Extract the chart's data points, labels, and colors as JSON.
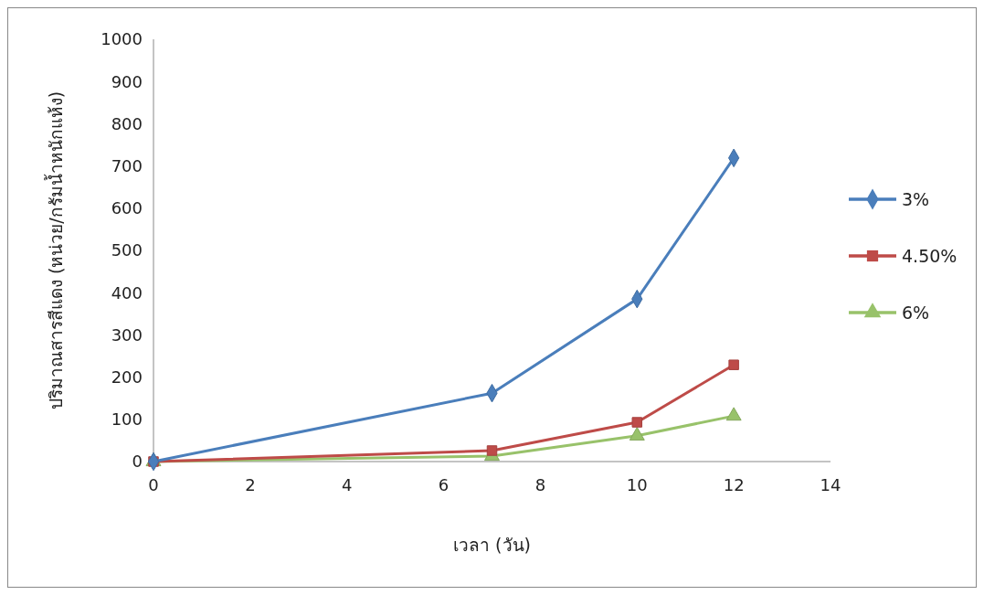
{
  "chart_data": {
    "type": "line",
    "xlabel": "เวลา (วัน)",
    "ylabel": "ปริมาณสารสีแดง (หน่วย/กรัมน้ำหนักแห้ง)",
    "x": [
      0,
      7,
      10,
      12
    ],
    "xlim": [
      0,
      14
    ],
    "xticks": [
      0,
      2,
      4,
      6,
      8,
      10,
      12,
      14
    ],
    "ylim": [
      0,
      1000
    ],
    "yticks": [
      0,
      100,
      200,
      300,
      400,
      500,
      600,
      700,
      800,
      900,
      1000
    ],
    "grid": false,
    "legend": "right",
    "series": [
      {
        "name": "3%",
        "color": "#4a7ebb",
        "marker": "diamond",
        "values": [
          0,
          162,
          385,
          719
        ]
      },
      {
        "name": "4.50%",
        "color": "#be4b48",
        "marker": "square",
        "values": [
          0,
          26,
          93,
          229
        ]
      },
      {
        "name": "6%",
        "color": "#98c26a",
        "marker": "triangle",
        "values": [
          0,
          13,
          61,
          108
        ]
      }
    ]
  }
}
